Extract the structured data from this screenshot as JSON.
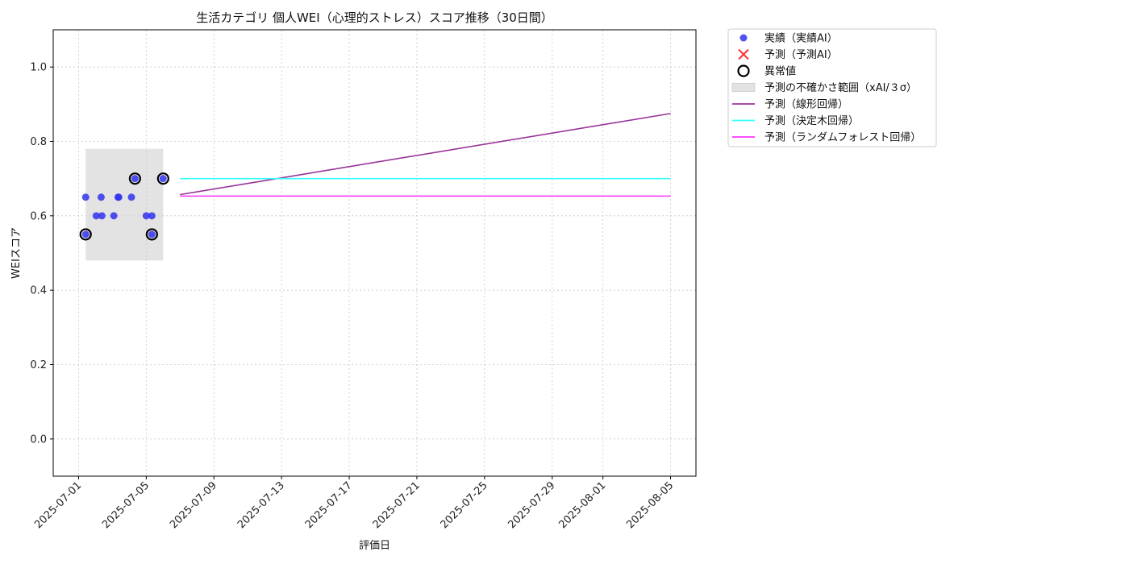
{
  "chart_data": {
    "type": "scatter",
    "title": "生活カテゴリ 個人WEI（心理的ストレス）スコア推移（30日間）",
    "xlabel": "評価日",
    "ylabel": "WEIスコア",
    "ylim": [
      -0.1,
      1.1
    ],
    "xlim": [
      "2025-06-29 12:00",
      "2025-08-06 12:00"
    ],
    "yticks": [
      0.0,
      0.2,
      0.4,
      0.6,
      0.8,
      1.0
    ],
    "ytick_labels": [
      "0.0",
      "0.2",
      "0.4",
      "0.6",
      "0.8",
      "1.0"
    ],
    "xticks": [
      "2025-07-01",
      "2025-07-05",
      "2025-07-09",
      "2025-07-13",
      "2025-07-17",
      "2025-07-21",
      "2025-07-25",
      "2025-07-29",
      "2025-08-01",
      "2025-08-05"
    ],
    "xtick_labels": [
      "2025-07-01",
      "2025-07-05",
      "2025-07-09",
      "2025-07-13",
      "2025-07-17",
      "2025-07-21",
      "2025-07-25",
      "2025-07-29",
      "2025-08-01",
      "2025-08-05"
    ],
    "grid": true,
    "legend_position": "outside-top-right",
    "series": [
      {
        "name": "実績（実績AI）",
        "kind": "scatter",
        "color": "#3333ee",
        "points": [
          {
            "x": "2025-07-01 10:00",
            "y": 0.55
          },
          {
            "x": "2025-07-01 10:00",
            "y": 0.65
          },
          {
            "x": "2025-07-02 01:00",
            "y": 0.6
          },
          {
            "x": "2025-07-02 08:00",
            "y": 0.65
          },
          {
            "x": "2025-07-02 09:00",
            "y": 0.6
          },
          {
            "x": "2025-07-03 02:00",
            "y": 0.6
          },
          {
            "x": "2025-07-03 08:00",
            "y": 0.65
          },
          {
            "x": "2025-07-03 09:00",
            "y": 0.65
          },
          {
            "x": "2025-07-04 03:00",
            "y": 0.65
          },
          {
            "x": "2025-07-04 08:00",
            "y": 0.7
          },
          {
            "x": "2025-07-05 00:00",
            "y": 0.6
          },
          {
            "x": "2025-07-05 08:00",
            "y": 0.6
          },
          {
            "x": "2025-07-05 08:00",
            "y": 0.55
          },
          {
            "x": "2025-07-06 00:00",
            "y": 0.7
          }
        ]
      },
      {
        "name": "予測（予測AI）",
        "kind": "scatter-x",
        "color": "#ff3333",
        "points": []
      },
      {
        "name": "異常値",
        "kind": "ring",
        "color": "#000000",
        "points": [
          {
            "x": "2025-07-01 10:00",
            "y": 0.55
          },
          {
            "x": "2025-07-04 08:00",
            "y": 0.7
          },
          {
            "x": "2025-07-05 08:00",
            "y": 0.55
          },
          {
            "x": "2025-07-06 00:00",
            "y": 0.7
          }
        ]
      },
      {
        "name": "予測の不確かさ範囲（xAI/３σ）",
        "kind": "band",
        "color": "#cccccc",
        "x0": "2025-07-01 10:00",
        "x1": "2025-07-06 00:00",
        "y0": 0.48,
        "y1": 0.78
      },
      {
        "name": "予測（線形回帰）",
        "kind": "line",
        "color": "#993399",
        "points": [
          {
            "x": "2025-07-07 00:00",
            "y": 0.657
          },
          {
            "x": "2025-08-05 00:00",
            "y": 0.875
          }
        ]
      },
      {
        "name": "予測（決定木回帰）",
        "kind": "line",
        "color": "#33ffff",
        "points": [
          {
            "x": "2025-07-07 00:00",
            "y": 0.7
          },
          {
            "x": "2025-08-05 00:00",
            "y": 0.7
          }
        ]
      },
      {
        "name": "予測（ランダムフォレスト回帰）",
        "kind": "line",
        "color": "#ff33ff",
        "points": [
          {
            "x": "2025-07-07 00:00",
            "y": 0.653
          },
          {
            "x": "2025-08-05 00:00",
            "y": 0.653
          }
        ]
      }
    ]
  }
}
